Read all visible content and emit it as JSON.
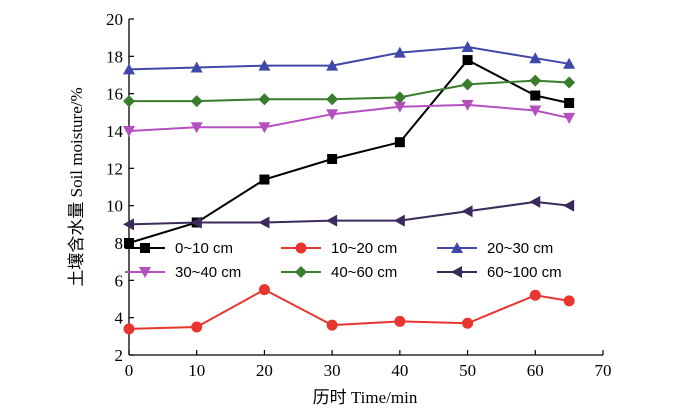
{
  "chart_data": {
    "type": "line",
    "xlabel": "历时 Time/min",
    "ylabel": "土壤含水量 Soil moisture/%",
    "xlim": [
      0,
      70
    ],
    "ylim": [
      2,
      20
    ],
    "xticks": [
      0,
      10,
      20,
      30,
      40,
      50,
      60,
      70
    ],
    "yticks": [
      2,
      4,
      6,
      8,
      10,
      12,
      14,
      16,
      18,
      20
    ],
    "grid": false,
    "legend_position": "lower-left-inside",
    "series": [
      {
        "name": "0~10 cm",
        "color": "#000000",
        "marker": "square",
        "x": [
          0,
          10,
          20,
          30,
          40,
          50,
          60,
          65
        ],
        "y": [
          8.0,
          9.1,
          11.4,
          12.5,
          13.4,
          17.8,
          15.9,
          15.5
        ]
      },
      {
        "name": "10~20 cm",
        "color": "#e8352f",
        "marker": "circle",
        "x": [
          0,
          10,
          20,
          30,
          40,
          50,
          60,
          65
        ],
        "y": [
          3.4,
          3.5,
          5.5,
          3.6,
          3.8,
          3.7,
          5.2,
          4.9
        ]
      },
      {
        "name": "20~30 cm",
        "color": "#3f48a8",
        "marker": "triangle-up",
        "x": [
          0,
          10,
          20,
          30,
          40,
          50,
          60,
          65
        ],
        "y": [
          17.3,
          17.4,
          17.5,
          17.5,
          18.2,
          18.5,
          17.9,
          17.6
        ]
      },
      {
        "name": "30~40 cm",
        "color": "#b450c0",
        "marker": "triangle-down",
        "x": [
          0,
          10,
          20,
          30,
          40,
          50,
          60,
          65
        ],
        "y": [
          14.0,
          14.2,
          14.2,
          14.9,
          15.3,
          15.4,
          15.1,
          14.7
        ]
      },
      {
        "name": "40~60 cm",
        "color": "#3a7d2c",
        "marker": "diamond",
        "x": [
          0,
          10,
          20,
          30,
          40,
          50,
          60,
          65
        ],
        "y": [
          15.6,
          15.6,
          15.7,
          15.7,
          15.8,
          16.5,
          16.7,
          16.6
        ]
      },
      {
        "name": "60~100 cm",
        "color": "#3b2a5c",
        "marker": "triangle-left",
        "x": [
          0,
          10,
          20,
          30,
          40,
          50,
          60,
          65
        ],
        "y": [
          9.0,
          9.1,
          9.1,
          9.2,
          9.2,
          9.7,
          10.2,
          10.0
        ]
      }
    ]
  }
}
